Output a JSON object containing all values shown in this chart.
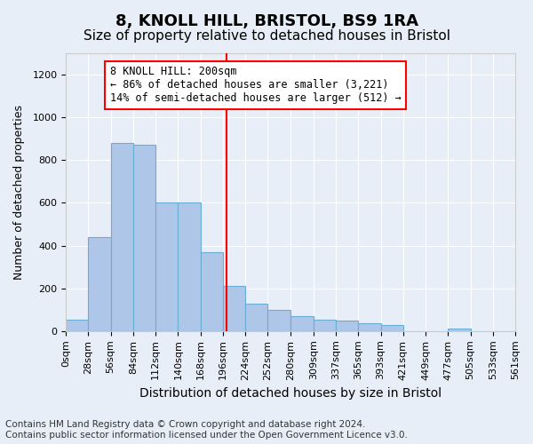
{
  "title": "8, KNOLL HILL, BRISTOL, BS9 1RA",
  "subtitle": "Size of property relative to detached houses in Bristol",
  "xlabel": "Distribution of detached houses by size in Bristol",
  "ylabel": "Number of detached properties",
  "bin_edges": [
    0,
    28,
    56,
    84,
    112,
    140,
    168,
    196,
    224,
    252,
    280,
    309,
    337,
    365,
    393,
    421,
    449,
    477,
    505,
    533,
    561
  ],
  "bin_labels": [
    "0sqm",
    "28sqm",
    "56sqm",
    "84sqm",
    "112sqm",
    "140sqm",
    "168sqm",
    "196sqm",
    "224sqm",
    "252sqm",
    "280sqm",
    "309sqm",
    "337sqm",
    "365sqm",
    "393sqm",
    "421sqm",
    "449sqm",
    "477sqm",
    "505sqm",
    "533sqm",
    "561sqm"
  ],
  "counts": [
    55,
    440,
    880,
    870,
    600,
    600,
    370,
    210,
    130,
    100,
    70,
    55,
    50,
    35,
    30,
    0,
    0,
    10,
    0,
    0
  ],
  "bar_color": "#aec6e8",
  "bar_edge_color": "#6aaed6",
  "property_size": 200,
  "property_line_color": "red",
  "annotation_text": "8 KNOLL HILL: 200sqm\n← 86% of detached houses are smaller (3,221)\n14% of semi-detached houses are larger (512) →",
  "annotation_box_color": "white",
  "annotation_box_edge_color": "red",
  "ylim": [
    0,
    1300
  ],
  "yticks": [
    0,
    200,
    400,
    600,
    800,
    1000,
    1200
  ],
  "background_color": "#e8eef7",
  "footer_line1": "Contains HM Land Registry data © Crown copyright and database right 2024.",
  "footer_line2": "Contains public sector information licensed under the Open Government Licence v3.0.",
  "title_fontsize": 13,
  "subtitle_fontsize": 11,
  "xlabel_fontsize": 10,
  "ylabel_fontsize": 9,
  "tick_fontsize": 8,
  "footer_fontsize": 7.5
}
